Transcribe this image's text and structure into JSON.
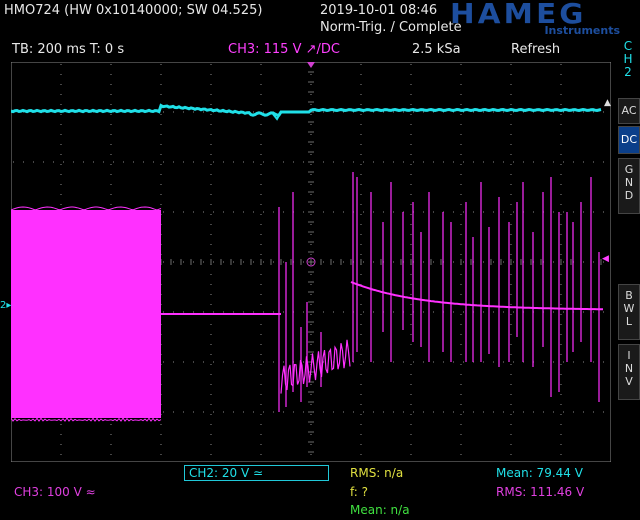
{
  "header": {
    "device": "HMO724 (HW 0x10140000; SW 04.525)",
    "datetime": "2019-10-01 08:46",
    "trigger_status": "Norm-Trig. / Complete",
    "brand": "HAMEG",
    "brand_sub": "Instruments"
  },
  "topbar": {
    "timebase": "TB: 200 ms  T: 0 s",
    "trigger": "CH3: 115 V ↗/DC",
    "sample_rate": "2.5 kSa",
    "mode": "Refresh"
  },
  "side": {
    "channel": [
      "C",
      "H",
      "2"
    ],
    "ac": "AC",
    "dc": "DC",
    "gnd": [
      "G",
      "N",
      "D"
    ],
    "bwl": [
      "B",
      "W",
      "L"
    ],
    "inv": [
      "I",
      "N",
      "V"
    ]
  },
  "bottom": {
    "ch2": "CH2: 20 V ≃",
    "ch3": "CH3: 100 V ≈",
    "rms_na": "RMS: n/a",
    "freq": "f: ?",
    "mean_na": "Mean: n/a",
    "mean": "Mean: 79.44 V",
    "rms": "RMS: 111.46 V"
  },
  "colors": {
    "ch2": "#20e0e8",
    "ch3": "#ff30ff",
    "grid": "#8a8a8a"
  }
}
